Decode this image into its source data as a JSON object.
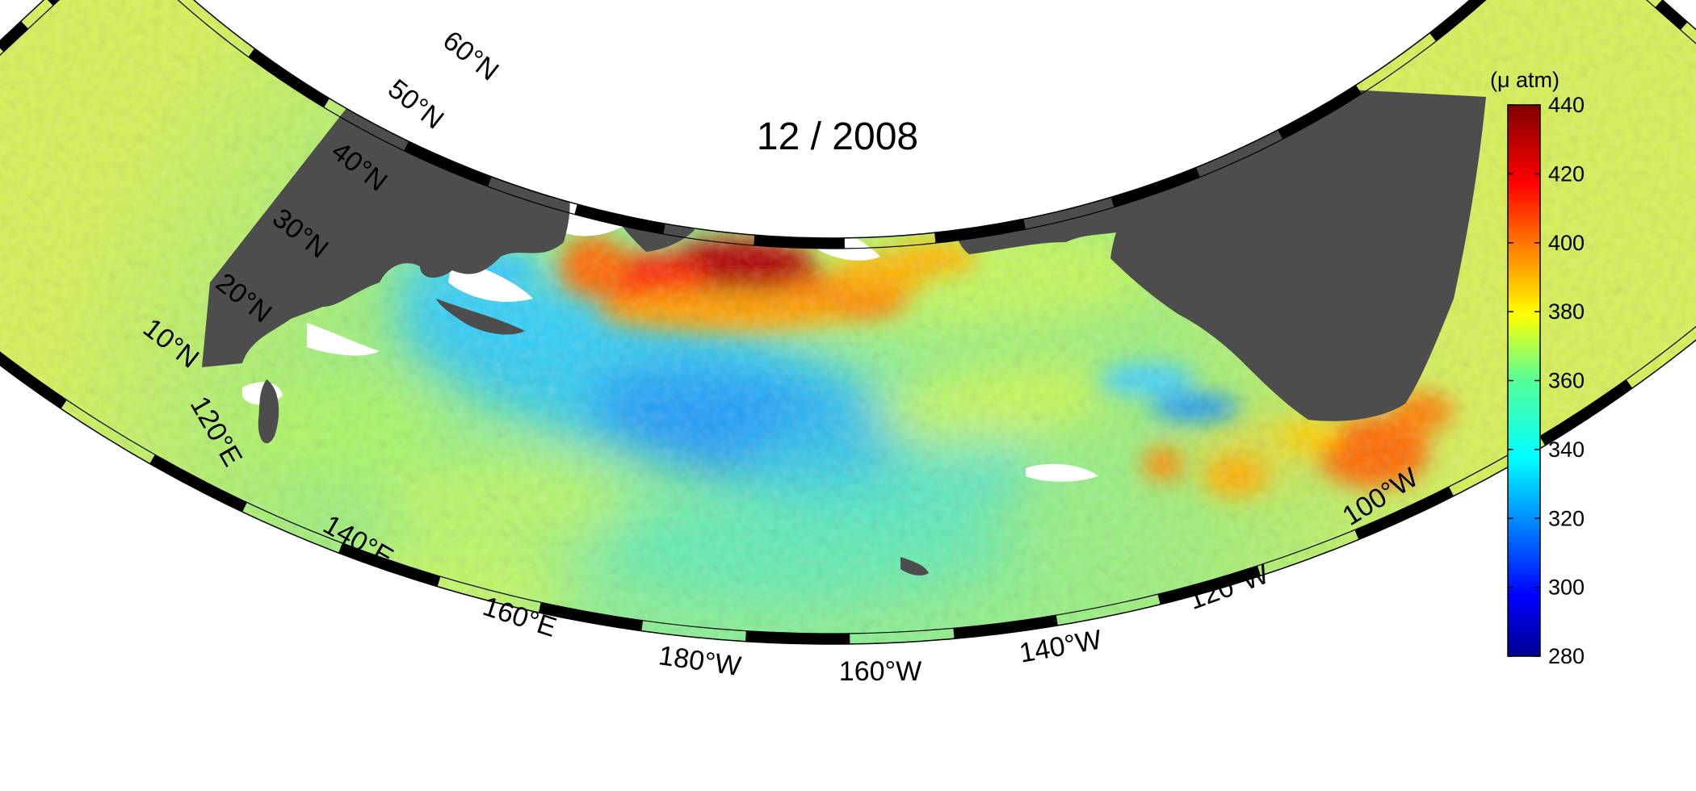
{
  "title": "12 / 2008",
  "colorbar": {
    "unit_label": "(μ atm)",
    "min": 280,
    "max": 440,
    "ticks": [
      "440",
      "420",
      "400",
      "380",
      "360",
      "340",
      "320",
      "300",
      "280"
    ]
  },
  "graticule": {
    "lat_labels": [
      "10°N",
      "20°N",
      "30°N",
      "40°N",
      "50°N",
      "60°N"
    ],
    "lon_labels": [
      "120°E",
      "140°E",
      "160°E",
      "180°W",
      "160°W",
      "140°W",
      "120°W",
      "100°W"
    ]
  },
  "colors": {
    "land": "#4d4d4d",
    "border": "#000000",
    "no_data": "#ffffff"
  }
}
